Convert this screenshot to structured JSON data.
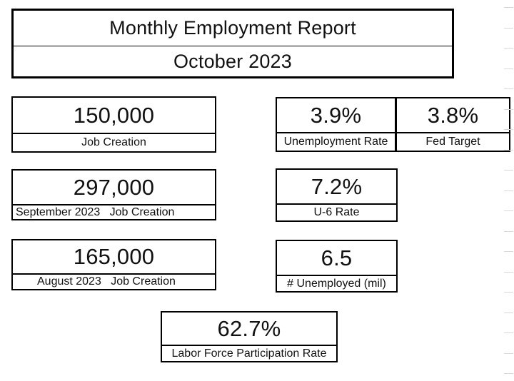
{
  "report": {
    "title": "Monthly Employment Report",
    "period": "October 2023"
  },
  "stats": {
    "job_creation_current": {
      "value": "150,000",
      "label": "Job Creation"
    },
    "unemployment_rate": {
      "value": "3.9%",
      "label": "Unemployment Rate"
    },
    "fed_target": {
      "value": "3.8%",
      "label": "Fed Target"
    },
    "job_creation_september": {
      "value": "297,000",
      "label": "September 2023   Job Creation"
    },
    "u6_rate": {
      "value": "7.2%",
      "label": "U-6 Rate"
    },
    "job_creation_august": {
      "value": "165,000",
      "label": "August 2023   Job Creation"
    },
    "unemployed_millions": {
      "value": "6.5",
      "label": "# Unemployed (mil)"
    },
    "labor_force_participation": {
      "value": "62.7%",
      "label": "Labor Force Participation Rate"
    }
  },
  "colors": {
    "background": "#ffffff",
    "border": "#000000",
    "text": "#111111",
    "gridline": "#d9d9d9"
  }
}
